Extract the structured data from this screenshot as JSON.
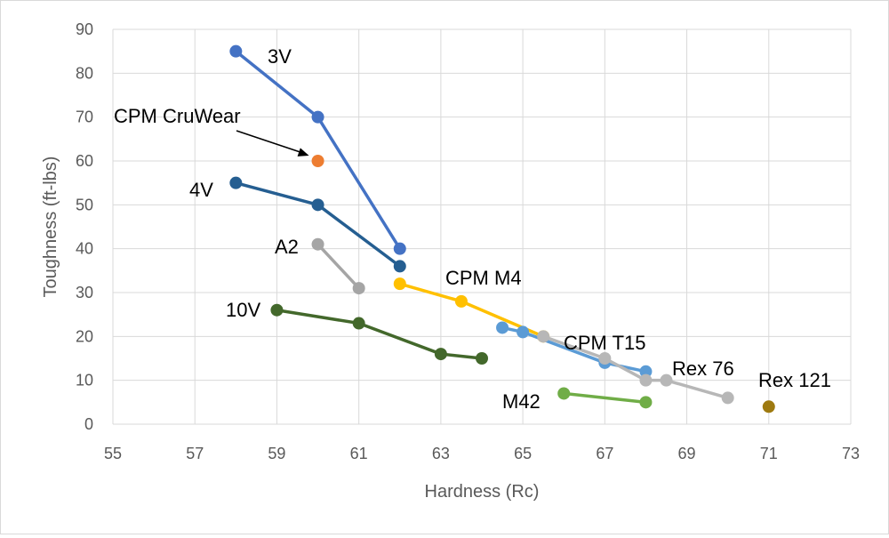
{
  "chart_data": {
    "type": "scatter",
    "title": "",
    "xlabel": "Hardness (Rc)",
    "ylabel": "Toughness (ft-lbs)",
    "xlim": [
      55,
      73
    ],
    "ylim": [
      0,
      90
    ],
    "xticks": [
      55,
      57,
      59,
      61,
      63,
      65,
      67,
      69,
      71,
      73
    ],
    "yticks": [
      0,
      10,
      20,
      30,
      40,
      50,
      60,
      70,
      80,
      90
    ],
    "grid": true,
    "legend": "none",
    "series": [
      {
        "name": "3V",
        "color": "#4472c4",
        "points": [
          [
            58,
            85
          ],
          [
            60,
            70
          ],
          [
            62,
            40
          ]
        ]
      },
      {
        "name": "CPM CruWear",
        "color": "#ed7d31",
        "points": [
          [
            60,
            60
          ]
        ]
      },
      {
        "name": "4V",
        "color": "#255e91",
        "points": [
          [
            58,
            55
          ],
          [
            60,
            50
          ],
          [
            62,
            36
          ]
        ]
      },
      {
        "name": "A2",
        "color": "#a5a5a5",
        "points": [
          [
            60,
            41
          ],
          [
            61,
            31
          ]
        ]
      },
      {
        "name": "CPM M4",
        "color": "#ffc000",
        "points": [
          [
            62,
            32
          ],
          [
            63.5,
            28
          ],
          [
            65.5,
            20
          ]
        ]
      },
      {
        "name": "10V",
        "color": "#43682b",
        "points": [
          [
            59,
            26
          ],
          [
            61,
            23
          ],
          [
            63,
            16
          ],
          [
            64,
            15
          ]
        ]
      },
      {
        "name": "CPM T15",
        "color": "#5b9bd5",
        "points": [
          [
            64.5,
            22
          ],
          [
            65,
            21
          ],
          [
            67,
            14
          ],
          [
            68,
            12
          ]
        ]
      },
      {
        "name": "Rex 76",
        "color": "#b7b7b7",
        "points": [
          [
            65.5,
            20
          ],
          [
            67,
            15
          ],
          [
            68,
            10
          ],
          [
            68.5,
            10
          ],
          [
            70,
            6
          ]
        ]
      },
      {
        "name": "M42",
        "color": "#70ad47",
        "points": [
          [
            66,
            7
          ],
          [
            68,
            5
          ]
        ]
      },
      {
        "name": "Rex 121",
        "color": "#9e7a10",
        "points": [
          [
            71,
            4
          ]
        ]
      }
    ]
  }
}
